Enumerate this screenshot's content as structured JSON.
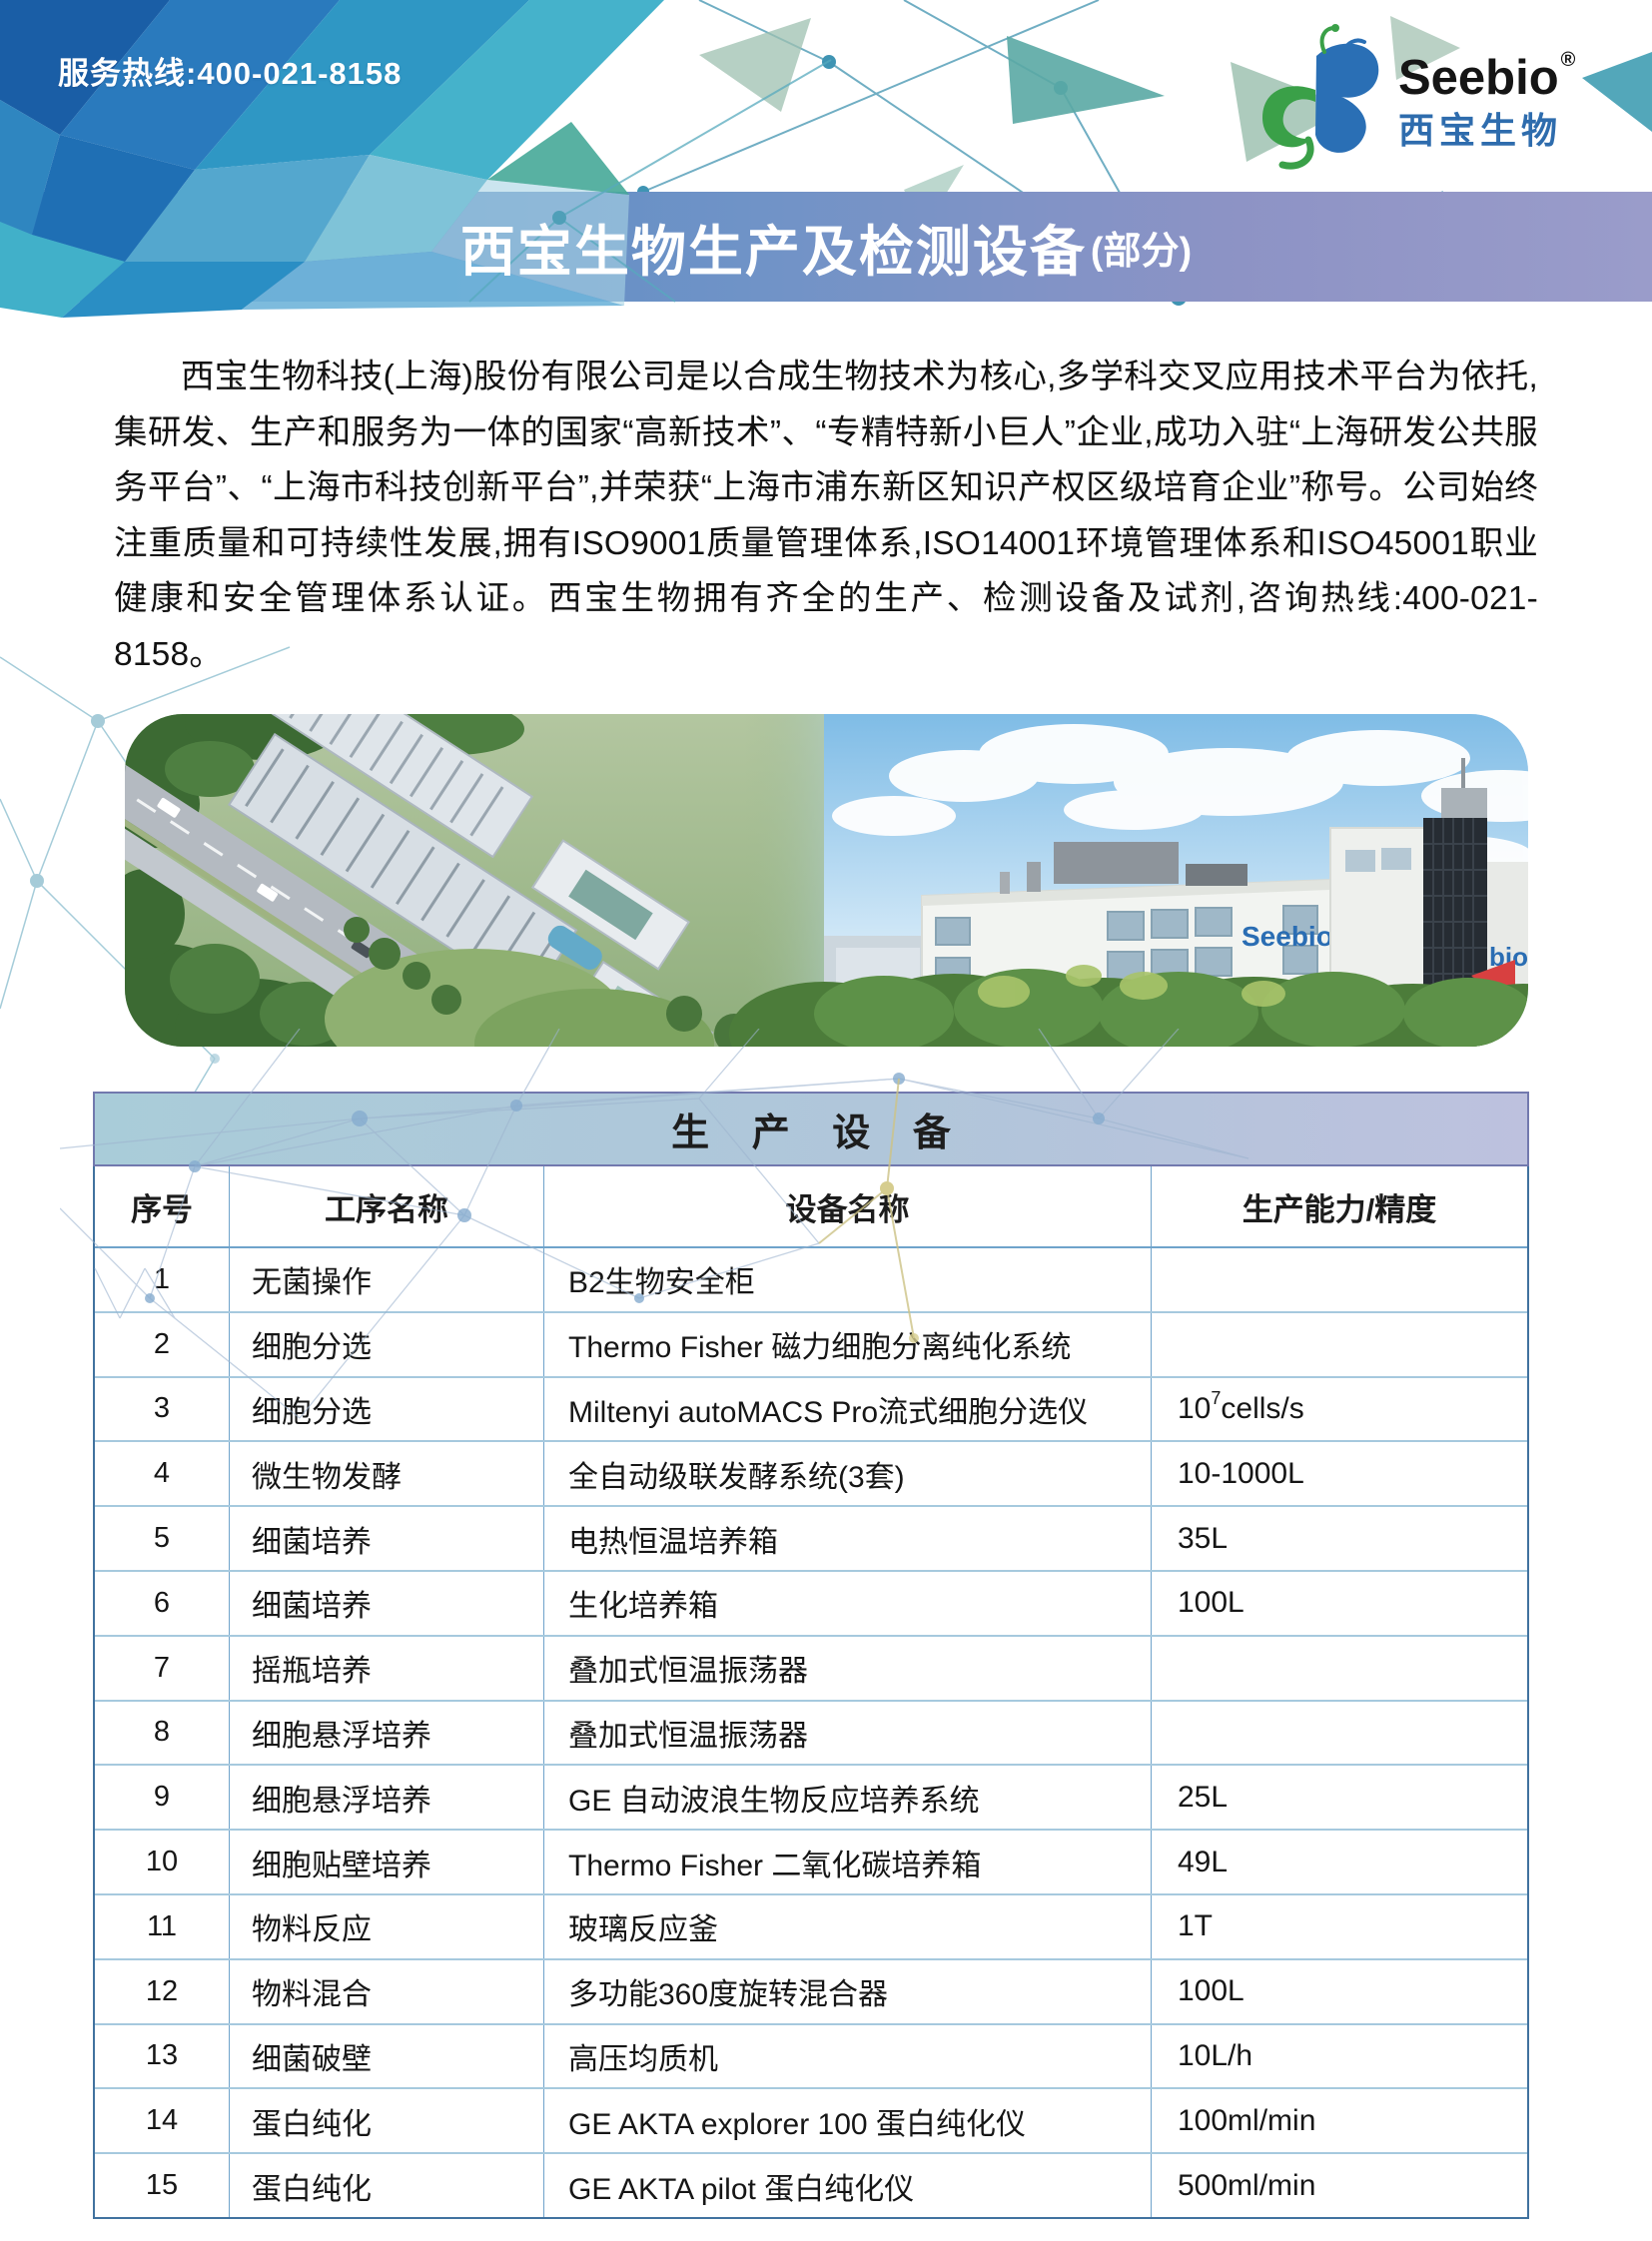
{
  "header": {
    "hotline": "服务热线:400-021-8158",
    "logo": {
      "brand": "Seebio",
      "reg": "®",
      "brand_cn": "西宝生物"
    }
  },
  "banner": {
    "title": "西宝生物生产及检测设备",
    "title_suffix": "(部分)"
  },
  "intro": {
    "text": "西宝生物科技(上海)股份有限公司是以合成生物技术为核心,多学科交叉应用技术平台为依托,集研发、生产和服务为一体的国家“高新技术”、“专精特新小巨人”企业,成功入驻“上海研发公共服务平台”、“上海市科技创新平台”,并荣获“上海市浦东新区知识产权区级培育企业”称号。公司始终注重质量和可持续性发展,拥有ISO9001质量管理体系,ISO14001环境管理体系和ISO45001职业健康和安全管理体系认证。西宝生物拥有齐全的生产、检测设备及试剂,咨询热线:400-021-8158。"
  },
  "photo": {
    "sign": "Seebio",
    "sign_partial": "bio"
  },
  "table": {
    "title": "生 产 设 备",
    "headers": [
      "序号",
      "工序名称",
      "设备名称",
      "生产能力/精度"
    ],
    "rows": [
      {
        "no": "1",
        "process": "无菌操作",
        "equipment": "B2生物安全柜",
        "capacity": ""
      },
      {
        "no": "2",
        "process": "细胞分选",
        "equipment": "Thermo Fisher 磁力细胞分离纯化系统",
        "capacity": ""
      },
      {
        "no": "3",
        "process": "细胞分选",
        "equipment": "Miltenyi autoMACS Pro流式细胞分选仪",
        "capacity": "10",
        "capacity_sup": "7",
        "capacity_unit": "cells/s"
      },
      {
        "no": "4",
        "process": "微生物发酵",
        "equipment": "全自动级联发酵系统(3套)",
        "capacity": "10-1000L"
      },
      {
        "no": "5",
        "process": "细菌培养",
        "equipment": "电热恒温培养箱",
        "capacity": "35L"
      },
      {
        "no": "6",
        "process": "细菌培养",
        "equipment": "生化培养箱",
        "capacity": "100L"
      },
      {
        "no": "7",
        "process": "摇瓶培养",
        "equipment": "叠加式恒温振荡器",
        "capacity": ""
      },
      {
        "no": "8",
        "process": "细胞悬浮培养",
        "equipment": "叠加式恒温振荡器",
        "capacity": ""
      },
      {
        "no": "9",
        "process": "细胞悬浮培养",
        "equipment": "GE 自动波浪生物反应培养系统",
        "capacity": "25L"
      },
      {
        "no": "10",
        "process": "细胞贴壁培养",
        "equipment": "Thermo Fisher 二氧化碳培养箱",
        "capacity": "49L"
      },
      {
        "no": "11",
        "process": "物料反应",
        "equipment": "玻璃反应釜",
        "capacity": "1T"
      },
      {
        "no": "12",
        "process": "物料混合",
        "equipment": "多功能360度旋转混合器",
        "capacity": "100L"
      },
      {
        "no": "13",
        "process": "细菌破壁",
        "equipment": "高压均质机",
        "capacity": "10L/h"
      },
      {
        "no": "14",
        "process": "蛋白纯化",
        "equipment": "GE AKTA explorer 100 蛋白纯化仪",
        "capacity": "100ml/min"
      },
      {
        "no": "15",
        "process": "蛋白纯化",
        "equipment": "GE AKTA pilot 蛋白纯化仪",
        "capacity": "500ml/min"
      }
    ]
  },
  "colors": {
    "banner_left": "#4e86c3",
    "banner_right": "#9a9cca",
    "table_title_left": "#a9ccd9",
    "table_title_right": "#bdc1de",
    "table_border": "#41729f",
    "row_line": "#a6c9de",
    "brand_blue": "#2e6cad",
    "deep_blue": "#1a5ea6",
    "teal": "#35a7c4",
    "green": "#46a898"
  }
}
